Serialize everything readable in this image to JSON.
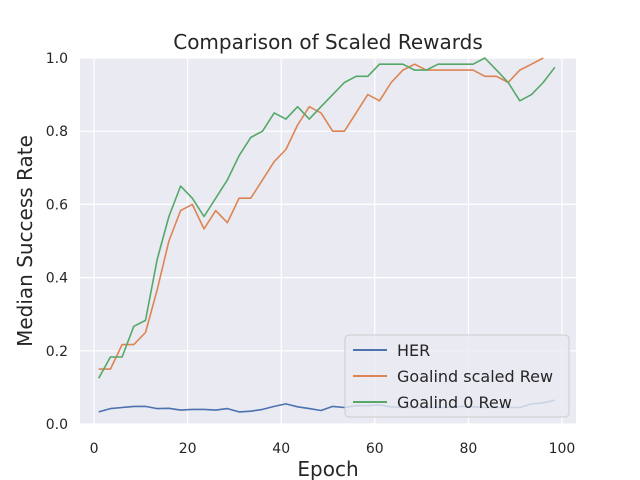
{
  "chart_data": {
    "type": "line",
    "title": "Comparison of Scaled Rewards",
    "xlabel": "Epoch",
    "ylabel": "Median Success Rate",
    "xlim": [
      -3,
      103
    ],
    "ylim": [
      0,
      1.0
    ],
    "xticks": [
      0,
      20,
      40,
      60,
      80,
      100
    ],
    "yticks": [
      0.0,
      0.2,
      0.4,
      0.6,
      0.8,
      1.0
    ],
    "grid": true,
    "legend": "lower-right",
    "series": [
      {
        "name": "HER",
        "color": "#4c72b0",
        "x": [
          1,
          3.5,
          6,
          8.5,
          11,
          13.5,
          16,
          18.5,
          21,
          23.5,
          26,
          28.5,
          31,
          33.5,
          36,
          38.5,
          41,
          43.5,
          46,
          48.5,
          51,
          53.5,
          56,
          58.5,
          61,
          63.5,
          66,
          68.5,
          71,
          73.5,
          76,
          78.5,
          81,
          83.5,
          86,
          88.5,
          91,
          93.5,
          96,
          98.5
        ],
        "values": [
          0.033,
          0.042,
          0.045,
          0.048,
          0.048,
          0.042,
          0.043,
          0.038,
          0.04,
          0.04,
          0.038,
          0.042,
          0.033,
          0.035,
          0.04,
          0.048,
          0.055,
          0.047,
          0.042,
          0.037,
          0.048,
          0.045,
          0.05,
          0.05,
          0.052,
          0.047,
          0.045,
          0.045,
          0.045,
          0.045,
          0.045,
          0.048,
          0.047,
          0.045,
          0.045,
          0.045,
          0.045,
          0.055,
          0.058,
          0.065
        ]
      },
      {
        "name": "Goalind scaled Rew",
        "color": "#dd8452",
        "x": [
          1,
          3.5,
          6,
          8.5,
          11,
          13.5,
          16,
          18.5,
          21,
          23.5,
          26,
          28.5,
          31,
          33.5,
          36,
          38.5,
          41,
          43.5,
          46,
          48.5,
          51,
          53.5,
          56,
          58.5,
          61,
          63.5,
          66,
          68.5,
          71,
          73.5,
          76,
          78.5,
          81,
          83.5,
          86,
          88.5,
          91,
          93.5,
          96
        ],
        "values": [
          0.15,
          0.15,
          0.217,
          0.217,
          0.25,
          0.367,
          0.5,
          0.583,
          0.6,
          0.533,
          0.583,
          0.55,
          0.617,
          0.617,
          0.667,
          0.717,
          0.75,
          0.817,
          0.867,
          0.85,
          0.8,
          0.8,
          0.85,
          0.9,
          0.883,
          0.933,
          0.967,
          0.983,
          0.967,
          0.967,
          0.967,
          0.967,
          0.967,
          0.95,
          0.95,
          0.933,
          0.967,
          0.983,
          1.0
        ]
      },
      {
        "name": "Goalind 0 Rew",
        "color": "#55a868",
        "x": [
          1,
          3.5,
          6,
          8.5,
          11,
          13.5,
          16,
          18.5,
          21,
          23.5,
          26,
          28.5,
          31,
          33.5,
          36,
          38.5,
          41,
          43.5,
          46,
          48.5,
          51,
          53.5,
          56,
          58.5,
          61,
          63.5,
          66,
          68.5,
          71,
          73.5,
          76,
          78.5,
          81,
          83.5,
          86,
          88.5,
          91,
          93.5,
          96,
          98.5
        ],
        "values": [
          0.125,
          0.183,
          0.183,
          0.267,
          0.283,
          0.45,
          0.567,
          0.65,
          0.617,
          0.567,
          0.617,
          0.667,
          0.733,
          0.783,
          0.8,
          0.85,
          0.833,
          0.867,
          0.833,
          0.867,
          0.9,
          0.933,
          0.95,
          0.95,
          0.983,
          0.983,
          0.983,
          0.967,
          0.967,
          0.983,
          0.983,
          0.983,
          0.983,
          1.0,
          0.967,
          0.933,
          0.883,
          0.9,
          0.933,
          0.975
        ]
      }
    ]
  }
}
